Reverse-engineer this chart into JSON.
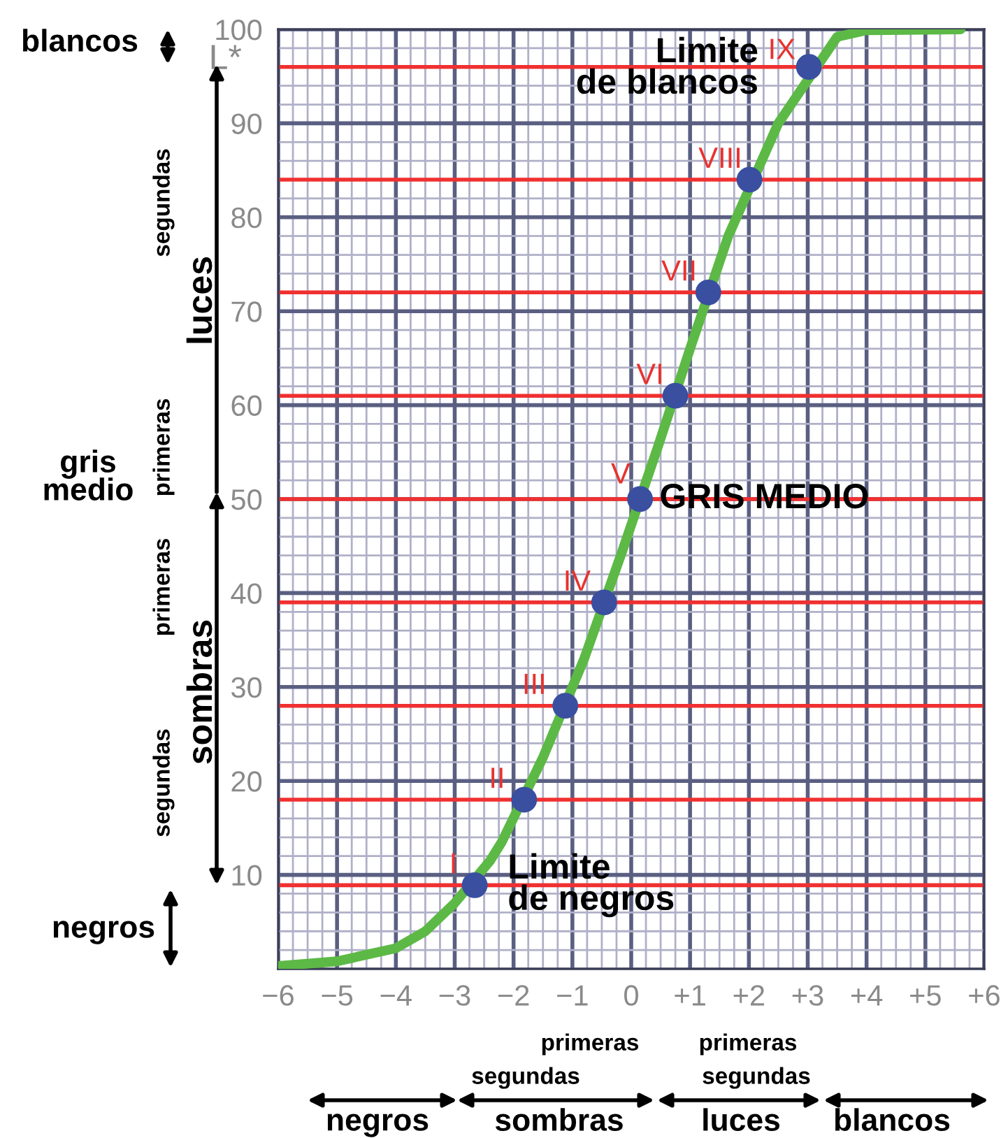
{
  "chart_data": {
    "type": "line",
    "ylabel": "L*",
    "x": [
      -6,
      -5,
      -4,
      -3.5,
      -3,
      -2.4,
      -2.2,
      -1.5,
      -0.8,
      -0.15,
      0.45,
      1.0,
      1.65,
      2.5,
      3.5,
      4,
      5.6
    ],
    "series": [
      {
        "color": "#5cb946",
        "marker": "none",
        "values": [
          0.3,
          0.8,
          2.2,
          4,
          7,
          11.5,
          13.5,
          22.5,
          33,
          44.5,
          55.5,
          66,
          78,
          90,
          99.2,
          99.9,
          100
        ]
      },
      {
        "type": "scatter",
        "color": "#3a4fa0",
        "marker": "circle",
        "x": [
          -2.66,
          -1.82,
          -1.12,
          -0.46,
          0.15,
          0.75,
          1.31,
          2.01,
          3.02
        ],
        "values": [
          8.9,
          18,
          28,
          39,
          50,
          61,
          72,
          84,
          96
        ]
      }
    ],
    "xlim": [
      -6,
      6
    ],
    "ylim": [
      0,
      100
    ],
    "xticks": [
      {
        "value": -6,
        "label": "−6"
      },
      {
        "value": -5,
        "label": "−5"
      },
      {
        "value": -4,
        "label": "−4"
      },
      {
        "value": -3,
        "label": "−3"
      },
      {
        "value": -2,
        "label": "−2"
      },
      {
        "value": -1,
        "label": "−1"
      },
      0,
      {
        "value": 1,
        "label": "+1"
      },
      {
        "value": 2,
        "label": "+2"
      },
      {
        "value": 3,
        "label": "+3"
      },
      {
        "value": 4,
        "label": "+4"
      },
      {
        "value": 5,
        "label": "+5"
      },
      {
        "value": 6,
        "label": "+6"
      }
    ],
    "yticks": [
      10,
      20,
      30,
      40,
      50,
      60,
      70,
      80,
      90,
      100
    ],
    "grid": true,
    "ref_lines": [
      {
        "axis": "y",
        "value": 8.9,
        "color": "#f03030"
      },
      {
        "axis": "y",
        "value": 18,
        "color": "#f03030"
      },
      {
        "axis": "y",
        "value": 28,
        "color": "#f03030"
      },
      {
        "axis": "y",
        "value": 39,
        "color": "#f03030"
      },
      {
        "axis": "y",
        "value": 50,
        "color": "#f03030"
      },
      {
        "axis": "y",
        "value": 61,
        "color": "#f03030"
      },
      {
        "axis": "y",
        "value": 72,
        "color": "#f03030"
      },
      {
        "axis": "y",
        "value": 84,
        "color": "#f03030"
      },
      {
        "axis": "y",
        "value": 96,
        "color": "#f03030"
      }
    ],
    "annotations": [
      {
        "text": "I",
        "x": -2.66,
        "y": 8.9
      },
      {
        "text": "II",
        "x": -1.82,
        "y": 18
      },
      {
        "text": "III",
        "x": -1.12,
        "y": 28
      },
      {
        "text": "IV",
        "x": -0.46,
        "y": 39
      },
      {
        "text": "V",
        "x": 0.15,
        "y": 50
      },
      {
        "text": "VI",
        "x": 0.75,
        "y": 61
      },
      {
        "text": "VII",
        "x": 1.31,
        "y": 72
      },
      {
        "text": "VIII",
        "x": 2.01,
        "y": 84
      },
      {
        "text": "IX",
        "x": 3.02,
        "y": 96
      },
      {
        "text": "Limite\nde negros",
        "x": -2.66,
        "y": 8.9
      },
      {
        "text": "GRIS MEDIO",
        "x": 0.15,
        "y": 50
      },
      {
        "text": "Limite\nde blancos",
        "x": 3.02,
        "y": 96
      },
      "blancos",
      "segundas",
      "luces",
      "primeras",
      "gris\nmedio",
      "primeras",
      "sombras",
      "segundas",
      "negros",
      "primeras",
      "primeras",
      "segundas",
      "segundas",
      "negros",
      "sombras",
      "luces",
      "blancos"
    ]
  }
}
